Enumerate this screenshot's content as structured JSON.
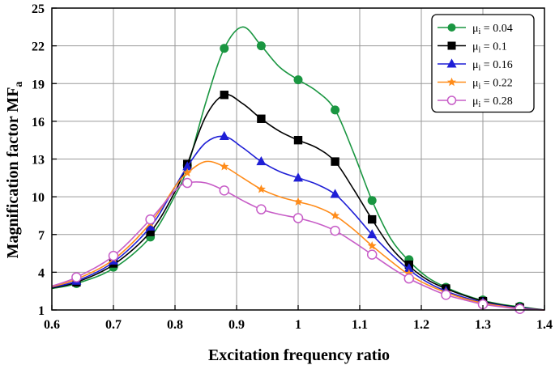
{
  "chart_data": {
    "type": "line",
    "title": "",
    "xlabel": "Excitation frequency ratio",
    "ylabel": {
      "main": "Magnification factor MF",
      "sub": "a"
    },
    "xlim": [
      0.6,
      1.4
    ],
    "ylim": [
      1,
      25
    ],
    "xticks": [
      0.6,
      0.7,
      0.8,
      0.9,
      1.0,
      1.1,
      1.2,
      1.3,
      1.4
    ],
    "xtick_labels": [
      "0.6",
      "0.7",
      "0.8",
      "0.9",
      "1",
      "1.1",
      "1.2",
      "1.3",
      "1.4"
    ],
    "yticks": [
      1,
      4,
      7,
      10,
      13,
      16,
      19,
      22,
      25
    ],
    "ytick_labels": [
      "1",
      "4",
      "7",
      "10",
      "13",
      "16",
      "19",
      "22",
      "25"
    ],
    "grid": true,
    "legend_position": "top-right",
    "series": [
      {
        "name": "μi = 0.04",
        "symbol": "μ",
        "sub": "i",
        "value_label": "= 0.04",
        "color": "#1a9641",
        "marker": "circle",
        "curve": [
          [
            0.6,
            2.7
          ],
          [
            0.64,
            3.1
          ],
          [
            0.7,
            4.3
          ],
          [
            0.76,
            6.8
          ],
          [
            0.8,
            10.1
          ],
          [
            0.82,
            12.3
          ],
          [
            0.85,
            17.5
          ],
          [
            0.88,
            21.8
          ],
          [
            0.91,
            23.5
          ],
          [
            0.94,
            22.0
          ],
          [
            0.97,
            20.3
          ],
          [
            1.0,
            19.3
          ],
          [
            1.03,
            18.4
          ],
          [
            1.06,
            16.9
          ],
          [
            1.09,
            13.5
          ],
          [
            1.12,
            9.7
          ],
          [
            1.15,
            6.7
          ],
          [
            1.18,
            4.9
          ],
          [
            1.21,
            3.6
          ],
          [
            1.24,
            2.8
          ],
          [
            1.27,
            2.2
          ],
          [
            1.3,
            1.75
          ],
          [
            1.33,
            1.45
          ],
          [
            1.36,
            1.25
          ],
          [
            1.4,
            1.0
          ]
        ],
        "markers": [
          [
            0.64,
            3.1
          ],
          [
            0.7,
            4.4
          ],
          [
            0.76,
            6.8
          ],
          [
            0.82,
            12.5
          ],
          [
            0.88,
            21.8
          ],
          [
            0.94,
            22.0
          ],
          [
            1.0,
            19.3
          ],
          [
            1.06,
            16.9
          ],
          [
            1.12,
            9.7
          ],
          [
            1.18,
            5.0
          ],
          [
            1.24,
            2.8
          ],
          [
            1.3,
            1.8
          ],
          [
            1.36,
            1.3
          ]
        ]
      },
      {
        "name": "μi = 0.1",
        "symbol": "μ",
        "sub": "i",
        "value_label": "= 0.1",
        "color": "#000000",
        "marker": "square",
        "curve": [
          [
            0.6,
            2.75
          ],
          [
            0.64,
            3.2
          ],
          [
            0.7,
            4.6
          ],
          [
            0.76,
            7.2
          ],
          [
            0.8,
            10.4
          ],
          [
            0.82,
            12.6
          ],
          [
            0.85,
            16.4
          ],
          [
            0.88,
            18.1
          ],
          [
            0.91,
            17.4
          ],
          [
            0.94,
            16.2
          ],
          [
            0.97,
            15.2
          ],
          [
            1.0,
            14.5
          ],
          [
            1.03,
            13.9
          ],
          [
            1.06,
            12.8
          ],
          [
            1.09,
            10.6
          ],
          [
            1.12,
            8.2
          ],
          [
            1.15,
            6.0
          ],
          [
            1.18,
            4.5
          ],
          [
            1.21,
            3.4
          ],
          [
            1.24,
            2.7
          ],
          [
            1.27,
            2.15
          ],
          [
            1.3,
            1.7
          ],
          [
            1.33,
            1.4
          ],
          [
            1.36,
            1.2
          ],
          [
            1.4,
            1.0
          ]
        ],
        "markers": [
          [
            0.64,
            3.2
          ],
          [
            0.7,
            4.7
          ],
          [
            0.76,
            7.2
          ],
          [
            0.82,
            12.6
          ],
          [
            0.88,
            18.1
          ],
          [
            0.94,
            16.2
          ],
          [
            1.0,
            14.5
          ],
          [
            1.06,
            12.8
          ],
          [
            1.12,
            8.2
          ],
          [
            1.18,
            4.6
          ],
          [
            1.24,
            2.7
          ],
          [
            1.3,
            1.7
          ],
          [
            1.36,
            1.2
          ]
        ]
      },
      {
        "name": "μi = 0.16",
        "symbol": "μ",
        "sub": "i",
        "value_label": "= 0.16",
        "color": "#1f1fd6",
        "marker": "triangle",
        "curve": [
          [
            0.6,
            2.8
          ],
          [
            0.64,
            3.3
          ],
          [
            0.7,
            4.8
          ],
          [
            0.76,
            7.6
          ],
          [
            0.8,
            10.8
          ],
          [
            0.82,
            12.4
          ],
          [
            0.85,
            14.3
          ],
          [
            0.88,
            14.8
          ],
          [
            0.91,
            13.9
          ],
          [
            0.94,
            12.8
          ],
          [
            0.97,
            12.0
          ],
          [
            1.0,
            11.5
          ],
          [
            1.03,
            11.0
          ],
          [
            1.06,
            10.2
          ],
          [
            1.09,
            8.7
          ],
          [
            1.12,
            7.0
          ],
          [
            1.15,
            5.5
          ],
          [
            1.18,
            4.2
          ],
          [
            1.21,
            3.2
          ],
          [
            1.24,
            2.5
          ],
          [
            1.27,
            2.0
          ],
          [
            1.3,
            1.6
          ],
          [
            1.33,
            1.35
          ],
          [
            1.36,
            1.15
          ],
          [
            1.4,
            1.0
          ]
        ],
        "markers": [
          [
            0.64,
            3.3
          ],
          [
            0.7,
            4.9
          ],
          [
            0.76,
            7.6
          ],
          [
            0.82,
            12.4
          ],
          [
            0.88,
            14.8
          ],
          [
            0.94,
            12.8
          ],
          [
            1.0,
            11.5
          ],
          [
            1.06,
            10.2
          ],
          [
            1.12,
            7.0
          ],
          [
            1.18,
            4.3
          ],
          [
            1.24,
            2.5
          ],
          [
            1.3,
            1.6
          ],
          [
            1.36,
            1.15
          ]
        ]
      },
      {
        "name": "μi = 0.22",
        "symbol": "μ",
        "sub": "i",
        "value_label": "= 0.22",
        "color": "#ff8c1a",
        "marker": "star",
        "curve": [
          [
            0.6,
            2.85
          ],
          [
            0.64,
            3.45
          ],
          [
            0.7,
            5.0
          ],
          [
            0.76,
            7.9
          ],
          [
            0.8,
            10.8
          ],
          [
            0.82,
            11.9
          ],
          [
            0.85,
            12.8
          ],
          [
            0.88,
            12.4
          ],
          [
            0.91,
            11.5
          ],
          [
            0.94,
            10.6
          ],
          [
            0.97,
            10.0
          ],
          [
            1.0,
            9.6
          ],
          [
            1.03,
            9.2
          ],
          [
            1.06,
            8.5
          ],
          [
            1.09,
            7.4
          ],
          [
            1.12,
            6.1
          ],
          [
            1.15,
            4.9
          ],
          [
            1.18,
            3.8
          ],
          [
            1.21,
            3.0
          ],
          [
            1.24,
            2.4
          ],
          [
            1.27,
            1.9
          ],
          [
            1.3,
            1.55
          ],
          [
            1.33,
            1.3
          ],
          [
            1.36,
            1.1
          ],
          [
            1.4,
            1.0
          ]
        ],
        "markers": [
          [
            0.64,
            3.5
          ],
          [
            0.7,
            5.1
          ],
          [
            0.76,
            7.9
          ],
          [
            0.82,
            11.9
          ],
          [
            0.88,
            12.4
          ],
          [
            0.94,
            10.6
          ],
          [
            1.0,
            9.6
          ],
          [
            1.06,
            8.5
          ],
          [
            1.12,
            6.1
          ],
          [
            1.18,
            3.9
          ],
          [
            1.24,
            2.4
          ],
          [
            1.3,
            1.55
          ],
          [
            1.36,
            1.1
          ]
        ]
      },
      {
        "name": "μi = 0.28",
        "symbol": "μ",
        "sub": "i",
        "value_label": "= 0.28",
        "color": "#c75dc7",
        "marker": "open-circle",
        "curve": [
          [
            0.6,
            2.9
          ],
          [
            0.64,
            3.6
          ],
          [
            0.7,
            5.3
          ],
          [
            0.76,
            8.2
          ],
          [
            0.8,
            10.5
          ],
          [
            0.82,
            11.1
          ],
          [
            0.85,
            11.1
          ],
          [
            0.88,
            10.5
          ],
          [
            0.91,
            9.7
          ],
          [
            0.94,
            9.0
          ],
          [
            0.97,
            8.6
          ],
          [
            1.0,
            8.3
          ],
          [
            1.03,
            7.9
          ],
          [
            1.06,
            7.3
          ],
          [
            1.09,
            6.4
          ],
          [
            1.12,
            5.4
          ],
          [
            1.15,
            4.4
          ],
          [
            1.18,
            3.5
          ],
          [
            1.21,
            2.8
          ],
          [
            1.24,
            2.2
          ],
          [
            1.27,
            1.8
          ],
          [
            1.3,
            1.45
          ],
          [
            1.33,
            1.25
          ],
          [
            1.36,
            1.08
          ],
          [
            1.4,
            1.0
          ]
        ],
        "markers": [
          [
            0.64,
            3.6
          ],
          [
            0.7,
            5.3
          ],
          [
            0.76,
            8.2
          ],
          [
            0.82,
            11.1
          ],
          [
            0.88,
            10.5
          ],
          [
            0.94,
            9.0
          ],
          [
            1.0,
            8.3
          ],
          [
            1.06,
            7.3
          ],
          [
            1.12,
            5.4
          ],
          [
            1.18,
            3.5
          ],
          [
            1.24,
            2.2
          ],
          [
            1.3,
            1.45
          ],
          [
            1.36,
            1.08
          ]
        ]
      }
    ]
  }
}
